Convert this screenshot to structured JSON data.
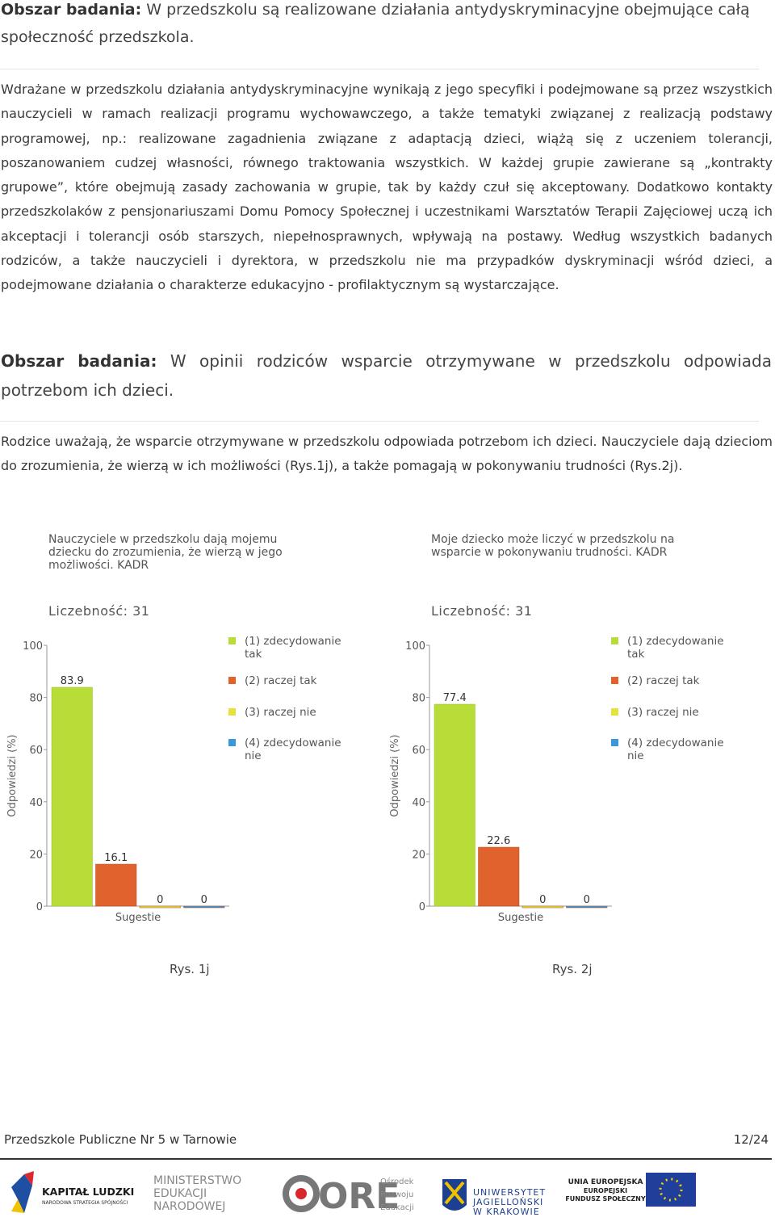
{
  "section1": {
    "label": "Obszar badania:",
    "text": "W przedszkolu są realizowane działania antydyskryminacyjne obejmujące całą społeczność przedszkola."
  },
  "paragraph1": "Wdrażane w przedszkolu działania antydyskryminacyjne wynikają z jego specyfiki i podejmowane są przez wszystkich nauczycieli w ramach realizacji programu wychowawczego, a także tematyki związanej z realizacją podstawy programowej, np.: realizowane zagadnienia związane z adaptacją dzieci, wiążą się z uczeniem tolerancji, poszanowaniem cudzej własności, równego traktowania wszystkich. W każdej grupie zawierane są „kontrakty grupowe”, które obejmują zasady zachowania w grupie, tak by każdy czuł się akceptowany. Dodatkowo kontakty przedszkolaków z pensjonariuszami Domu Pomocy Społecznej i uczestnikami Warsztatów Terapii Zajęciowej uczą ich akceptacji i tolerancji osób starszych, niepełnosprawnych, wpływają na postawy. Według wszystkich badanych rodziców, a także nauczycieli i dyrektora, w przedszkolu nie ma przypadków dyskryminacji wśród dzieci, a podejmowane działania o charakterze edukacyjno - profilaktycznym są wystarczające.",
  "section2": {
    "label": "Obszar badania:",
    "text": "W opinii rodziców wsparcie otrzymywane w przedszkolu odpowiada potrzebom ich dzieci."
  },
  "paragraph2": "Rodzice uważają, że wsparcie otrzymywane w przedszkolu odpowiada potrzebom ich dzieci. Nauczyciele dają dzieciom do zrozumienia, że wierzą w ich możliwości (Rys.1j), a także pomagają w pokonywaniu trudności (Rys.2j).",
  "chart_data": [
    {
      "type": "bar",
      "title": "Nauczyciele w przedszkolu dają mojemu dziecku do zrozumienia, że wierzą w jego możliwości. KADR",
      "subtitle": "Liczebność: 31",
      "y_label": "Odpowiedzi (%)",
      "categories": [
        "Sugestie"
      ],
      "series": [
        {
          "name": "(1) zdecydowanie tak",
          "color": "#b8dc38",
          "values": [
            83.9
          ]
        },
        {
          "name": "(2) raczej tak",
          "color": "#e0622c",
          "values": [
            16.1
          ]
        },
        {
          "name": "(3) raczej nie",
          "color": "#e6e23c",
          "values": [
            0
          ]
        },
        {
          "name": "(4) zdecydowanie nie",
          "color": "#3a98d8",
          "values": [
            0
          ]
        }
      ],
      "ylim": [
        0,
        100
      ],
      "yticks": [
        0,
        20,
        40,
        60,
        80,
        100
      ],
      "caption": "Rys. 1j"
    },
    {
      "type": "bar",
      "title": "Moje dziecko może liczyć w przedszkolu na wsparcie w pokonywaniu trudności. KADR",
      "subtitle": "Liczebność: 31",
      "y_label": "Odpowiedzi (%)",
      "categories": [
        "Sugestie"
      ],
      "series": [
        {
          "name": "(1) zdecydowanie tak",
          "color": "#b8dc38",
          "values": [
            77.4
          ]
        },
        {
          "name": "(2) raczej tak",
          "color": "#e0622c",
          "values": [
            22.6
          ]
        },
        {
          "name": "(3) raczej nie",
          "color": "#e6e23c",
          "values": [
            0
          ]
        },
        {
          "name": "(4) zdecydowanie nie",
          "color": "#3a98d8",
          "values": [
            0
          ]
        }
      ],
      "ylim": [
        0,
        100
      ],
      "yticks": [
        0,
        20,
        40,
        60,
        80,
        100
      ],
      "caption": "Rys. 2j"
    }
  ],
  "footer": {
    "left": "Przedszkole Publiczne Nr 5 w Tarnowie",
    "right": "12/24"
  },
  "logos": {
    "kl": "KAPITAŁ LUDZKI",
    "kl_sub": "NARODOWA STRATEGIA SPÓJNOŚCI",
    "men": [
      "MINISTERSTWO",
      "EDUKACJI",
      "NARODOWEJ"
    ],
    "ore": "ORE",
    "ore_sub": [
      "Ośrodek",
      "Rozwoju",
      "Edukacji"
    ],
    "uj": [
      "UNIWERSYTET",
      "JAGIELLOŃSKI",
      "W KRAKOWIE"
    ],
    "ue": [
      "UNIA EUROPEJSKA",
      "EUROPEJSKI",
      "FUNDUSZ SPOŁECZNY"
    ]
  }
}
